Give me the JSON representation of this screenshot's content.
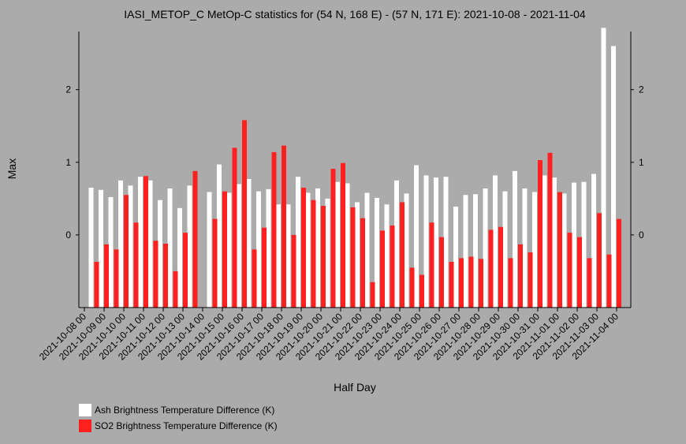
{
  "chart_data": {
    "type": "bar",
    "title": "IASI_METOP_C MetOp-C statistics for (54 N, 168 E) - (57 N, 171 E): 2021-10-08 - 2021-11-04",
    "xlabel": "Half Day",
    "ylabel": "Max",
    "ylim": [
      -1,
      2.8
    ],
    "yticks": [
      0,
      1,
      2
    ],
    "grid": false,
    "legend_position": "bottom-left",
    "tick_labels": [
      "2021-10-08 00",
      "2021-10-09 00",
      "2021-10-10 00",
      "2021-10-11 00",
      "2021-10-12 00",
      "2021-10-13 00",
      "2021-10-14 00",
      "2021-10-15 00",
      "2021-10-16 00",
      "2021-10-17 00",
      "2021-10-18 00",
      "2021-10-19 00",
      "2021-10-20 00",
      "2021-10-21 00",
      "2021-10-22 00",
      "2021-10-23 00",
      "2021-10-24 00",
      "2021-10-25 00",
      "2021-10-26 00",
      "2021-10-27 00",
      "2021-10-28 00",
      "2021-10-29 00",
      "2021-10-30 00",
      "2021-10-31 00",
      "2021-11-01 00",
      "2021-11-02 00",
      "2021-11-03 00",
      "2021-11-04 00"
    ],
    "series": [
      {
        "name": "Ash Brightness Temperature Difference (K)",
        "color": "#ffffff",
        "values": [
          0.65,
          0.62,
          0.52,
          0.75,
          0.68,
          0.8,
          0.75,
          0.48,
          0.64,
          0.37,
          0.68,
          null,
          0.59,
          0.97,
          0.58,
          0.7,
          0.77,
          0.6,
          0.63,
          0.42,
          0.42,
          0.8,
          0.58,
          0.64,
          0.5,
          0.73,
          0.71,
          0.45,
          0.58,
          0.51,
          0.42,
          0.75,
          0.57,
          0.96,
          0.82,
          0.79,
          0.8,
          0.39,
          0.55,
          0.56,
          0.64,
          0.82,
          0.6,
          0.88,
          0.64,
          0.59,
          0.82,
          0.79,
          0.57,
          0.72,
          0.73,
          0.84,
          2.85,
          2.6
        ]
      },
      {
        "name": "SO2 Brightness Temperature Difference (K)",
        "color": "#ff2020",
        "values": [
          -0.37,
          -0.13,
          -0.2,
          0.55,
          0.17,
          0.81,
          -0.08,
          -0.12,
          -0.5,
          0.03,
          0.88,
          null,
          0.22,
          0.6,
          1.2,
          1.58,
          -0.2,
          0.1,
          1.14,
          1.23,
          0.0,
          0.65,
          0.48,
          0.4,
          0.91,
          0.99,
          0.38,
          0.23,
          -0.65,
          0.06,
          0.13,
          0.45,
          -0.45,
          -0.55,
          0.17,
          -0.03,
          -0.37,
          -0.32,
          -0.3,
          -0.33,
          0.07,
          0.11,
          -0.32,
          -0.13,
          -0.24,
          1.03,
          1.13,
          0.59,
          0.03,
          -0.03,
          -0.32,
          0.3,
          -0.27,
          0.22
        ]
      }
    ]
  }
}
